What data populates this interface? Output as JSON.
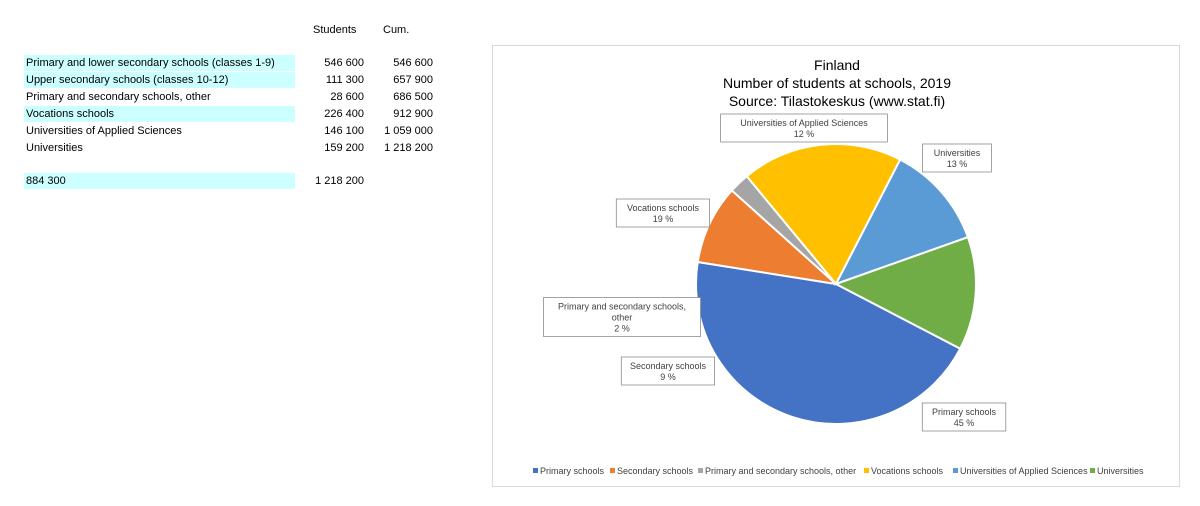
{
  "table": {
    "headers": {
      "students": "Students",
      "cum": "Cum."
    },
    "rows": [
      {
        "label": "Primary and lower secondary schools (classes 1-9)",
        "students": "546 600",
        "cum": "546 600",
        "highlight": true
      },
      {
        "label": "Upper secondary schools (classes 10-12)",
        "students": "111 300",
        "cum": "657 900",
        "highlight": true
      },
      {
        "label": "Primary and secondary schools, other",
        "students": "28 600",
        "cum": "686 500",
        "highlight": false
      },
      {
        "label": "Vocations schools",
        "students": "226 400",
        "cum": "912 900",
        "highlight": true
      },
      {
        "label": "Universities of Applied Sciences",
        "students": "146 100",
        "cum": "1 059 000",
        "highlight": false
      },
      {
        "label": "Universities",
        "students": "159 200",
        "cum": "1 218 200",
        "highlight": false
      }
    ],
    "summary": {
      "label": "884 300",
      "students": "1 218 200",
      "highlight": true
    }
  },
  "chart_data": {
    "type": "pie",
    "title": [
      "Finland",
      "Number of students at schools, 2019",
      "Source: Tilastokeskus (www.stat.fi)"
    ],
    "categories": [
      "Primary schools",
      "Secondary schools",
      "Primary and secondary schools, other",
      "Vocations schools",
      "Universities of Applied Sciences",
      "Universities"
    ],
    "values": [
      546600,
      111300,
      28600,
      226400,
      146100,
      159200
    ],
    "data_labels": [
      {
        "lines": [
          "Primary schools",
          "45 %"
        ]
      },
      {
        "lines": [
          "Secondary schools",
          "9 %"
        ]
      },
      {
        "lines": [
          "Primary and secondary schools,",
          "other",
          "2 %"
        ]
      },
      {
        "lines": [
          "Vocations schools",
          "19 %"
        ]
      },
      {
        "lines": [
          "Universities of Applied Sciences",
          "12 %"
        ]
      },
      {
        "lines": [
          "Universities",
          "13 %"
        ]
      }
    ],
    "colors": [
      "#4472c4",
      "#ed7d31",
      "#a5a5a5",
      "#ffc000",
      "#5b9bd5",
      "#70ad47"
    ],
    "legend_position": "bottom"
  }
}
